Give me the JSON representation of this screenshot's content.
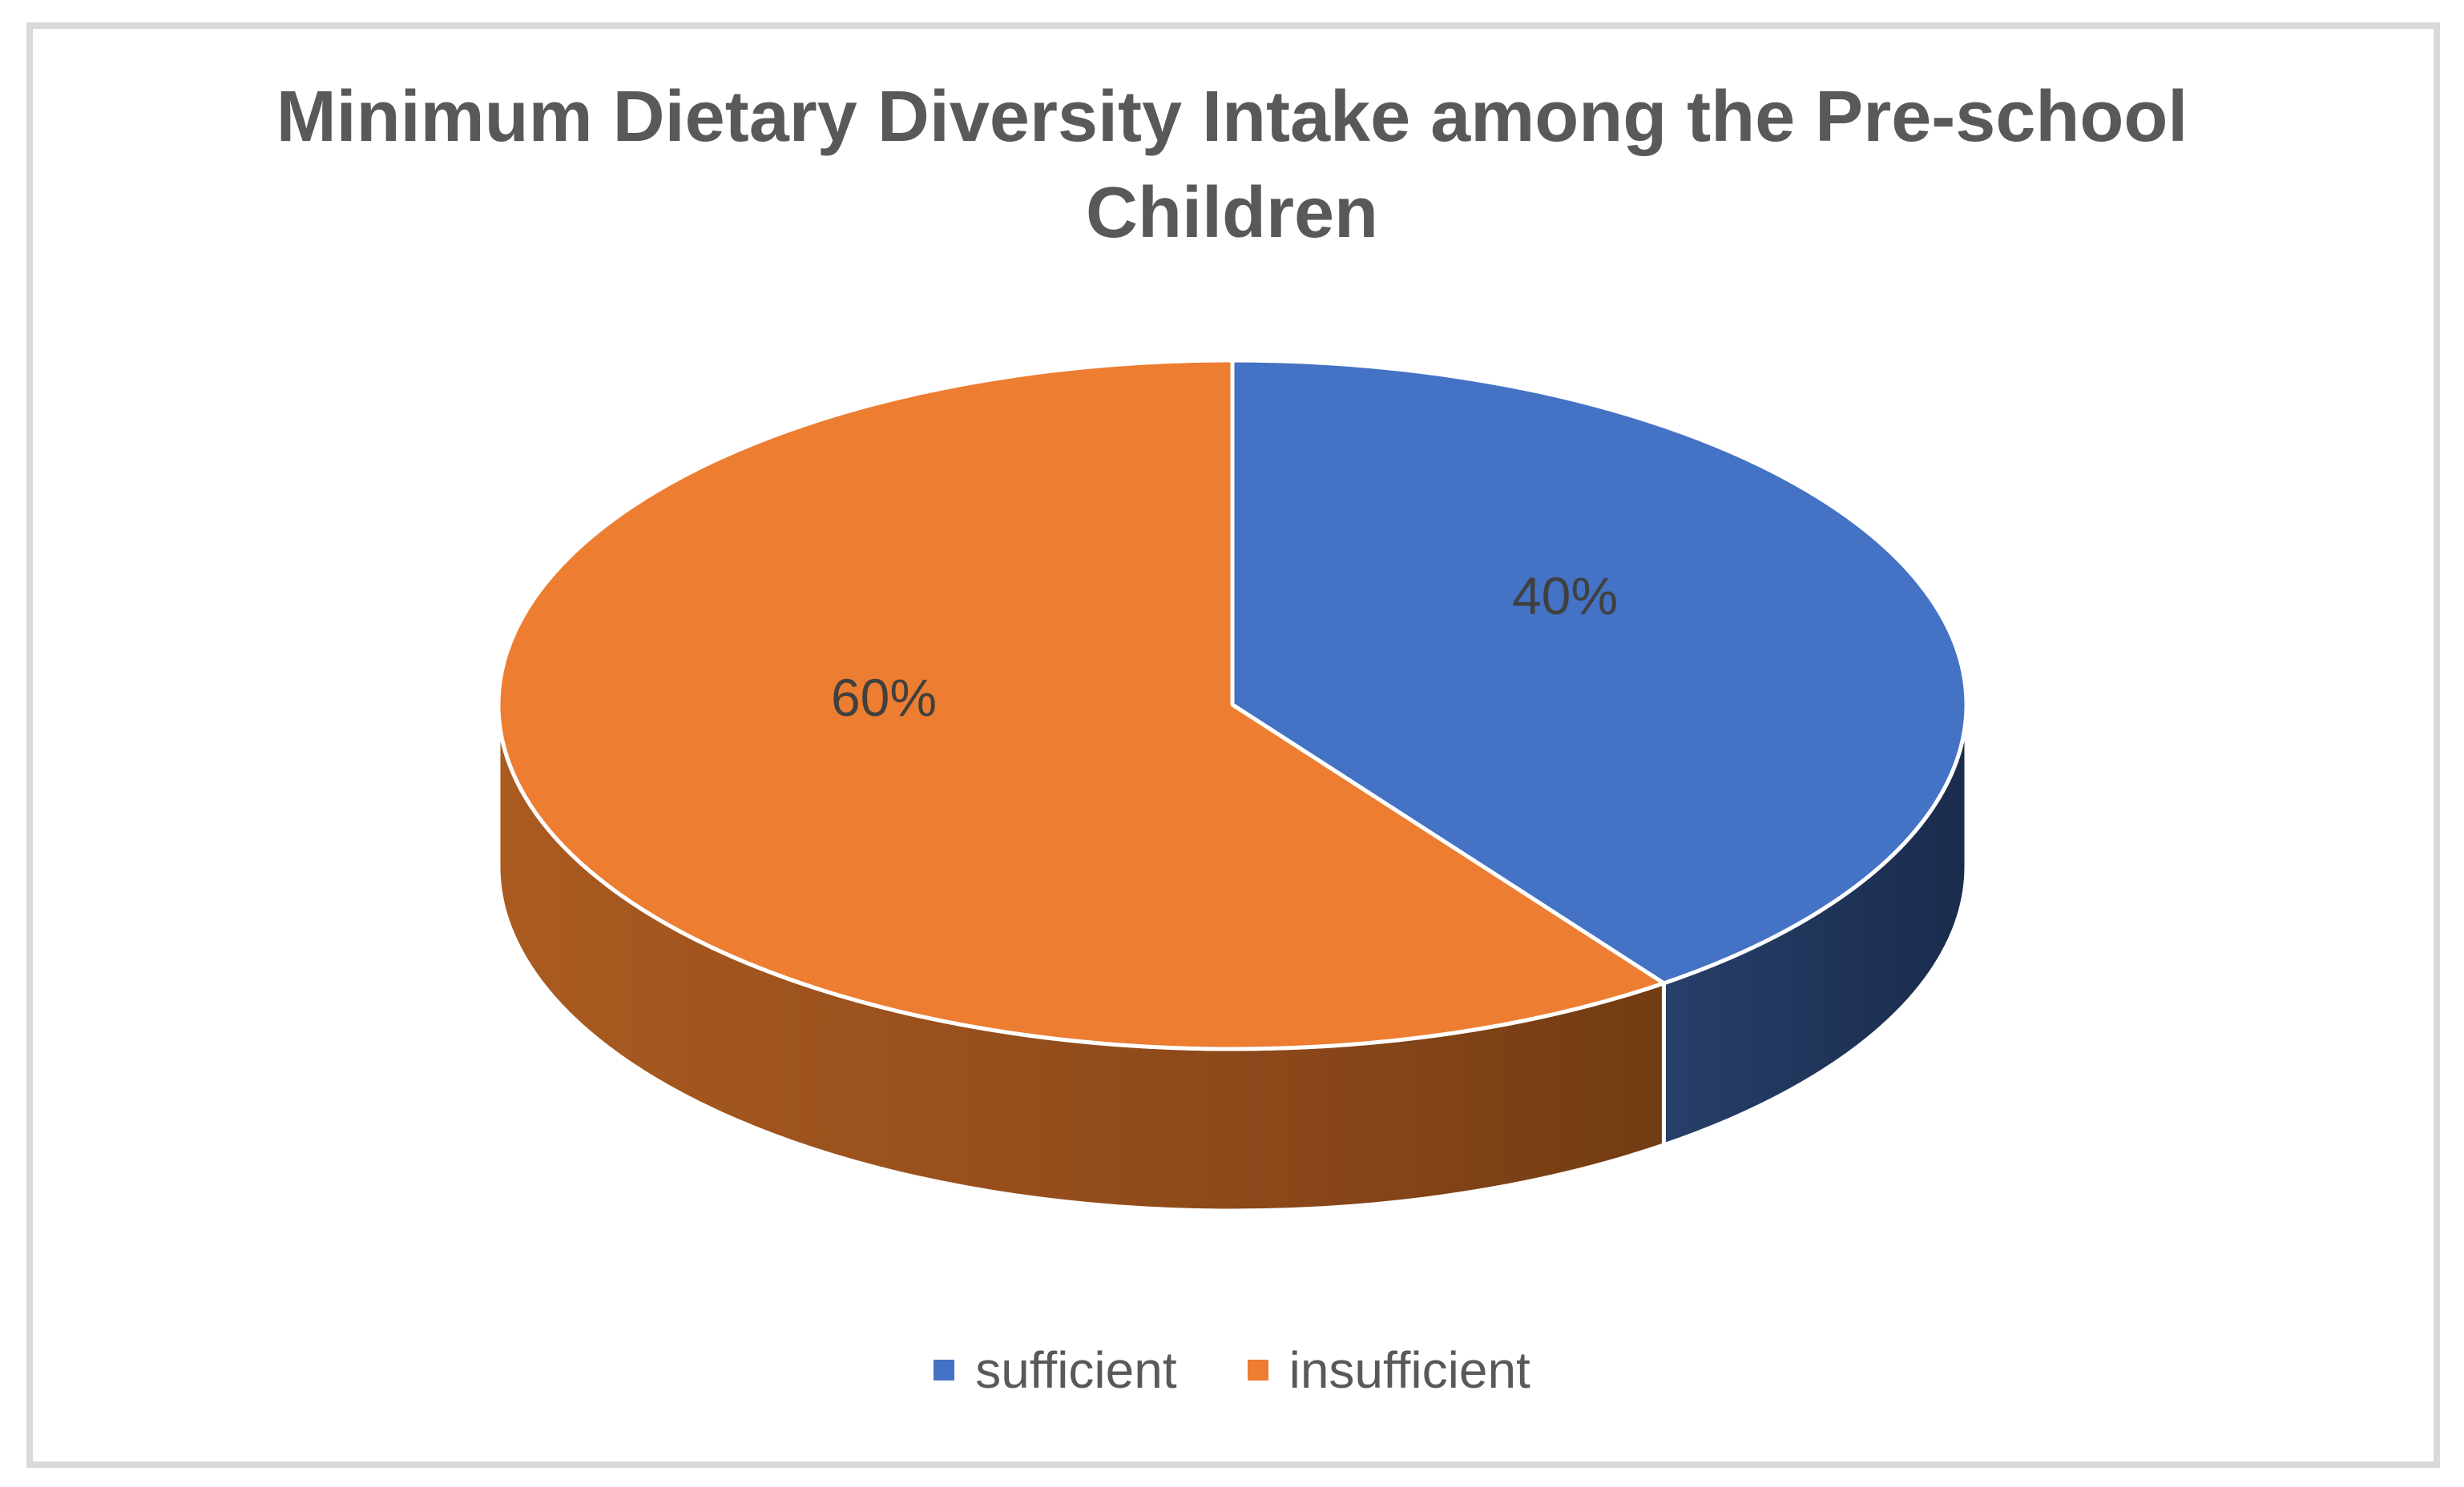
{
  "frame": {
    "border_color": "#D9D9D9"
  },
  "title": {
    "lines": [
      "Minimum Dietary Diversity Intake among the Pre-school",
      "Children"
    ],
    "color": "#595959"
  },
  "chart_data": {
    "type": "pie",
    "is_3d": true,
    "title": "Minimum Dietary Diversity Intake among the Pre-school Children",
    "start_angle_deg": 90,
    "direction": "clockwise",
    "legend_position": "bottom",
    "label_color": "#404040",
    "text_color": "#595959",
    "categories": [
      "sufficient",
      "insufficient"
    ],
    "values": [
      40,
      60
    ],
    "slices": [
      {
        "label": "sufficient",
        "value": 40,
        "display": "40%",
        "color": "#4472C4",
        "side_color": "#1F3864"
      },
      {
        "label": "insufficient",
        "value": 60,
        "display": "60%",
        "color": "#ED7D31",
        "side_color": "#8A4719"
      }
    ]
  },
  "legend": {
    "items": [
      {
        "label": "sufficient",
        "color": "#4472C4"
      },
      {
        "label": "insufficient",
        "color": "#ED7D31"
      }
    ]
  }
}
